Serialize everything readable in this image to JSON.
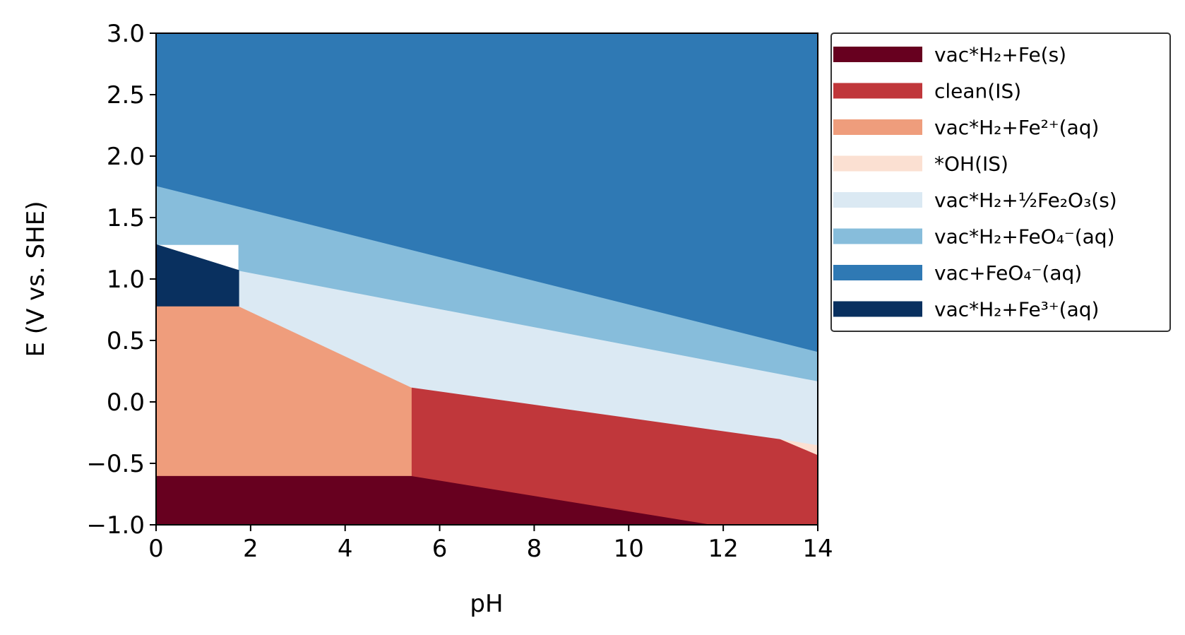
{
  "chart_data": {
    "type": "area",
    "title": "",
    "xlabel": "pH",
    "ylabel": "E (V vs. SHE)",
    "xlim": [
      0,
      14
    ],
    "ylim": [
      -1.0,
      3.0
    ],
    "xticks": [
      0,
      2,
      4,
      6,
      8,
      10,
      12,
      14
    ],
    "xtick_labels": [
      "0",
      "2",
      "4",
      "6",
      "8",
      "10",
      "12",
      "14"
    ],
    "yticks": [
      -1.0,
      -0.5,
      0.0,
      0.5,
      1.0,
      1.5,
      2.0,
      2.5,
      3.0
    ],
    "ytick_labels": [
      "−1.0",
      "−0.5",
      "0.0",
      "0.5",
      "1.0",
      "1.5",
      "2.0",
      "2.5",
      "3.0"
    ],
    "grid": false,
    "legend_position": "outside-right",
    "series": [
      {
        "name": "vac*H₂+Fe(s)",
        "color": "#67001f",
        "polygon": [
          [
            0,
            -1.0
          ],
          [
            0,
            -0.6
          ],
          [
            5.4,
            -0.6
          ],
          [
            14,
            -1.05
          ],
          [
            14,
            -1.0
          ]
        ]
      },
      {
        "name": "clean(IS)",
        "color": "#c0373b",
        "polygon": [
          [
            5.4,
            -0.6
          ],
          [
            5.4,
            0.12
          ],
          [
            13.2,
            -0.3
          ],
          [
            14,
            -0.43
          ],
          [
            14,
            -1.0
          ],
          [
            11.8,
            -1.0
          ]
        ]
      },
      {
        "name": "vac*H₂+Fe²⁺(aq)",
        "color": "#ef9d7c",
        "polygon": [
          [
            0,
            -0.6
          ],
          [
            0,
            0.78
          ],
          [
            1.75,
            0.78
          ],
          [
            5.4,
            0.12
          ],
          [
            5.4,
            -0.6
          ]
        ]
      },
      {
        "name": "*OH(IS)",
        "color": "#fbe0d2",
        "polygon": [
          [
            13.2,
            -0.3
          ],
          [
            14,
            -0.35
          ],
          [
            14,
            -0.43
          ]
        ]
      },
      {
        "name": "vac*H₂+½Fe₂O₃(s)",
        "color": "#dbe9f3",
        "polygon": [
          [
            1.75,
            0.78
          ],
          [
            1.75,
            1.07
          ],
          [
            14,
            0.17
          ],
          [
            14,
            -0.35
          ],
          [
            13.2,
            -0.3
          ],
          [
            5.4,
            0.12
          ]
        ]
      },
      {
        "name": "vac*H₂+FeO₄⁻(aq)",
        "color": "#87bddb",
        "polygon": [
          [
            0,
            1.28
          ],
          [
            0,
            1.76
          ],
          [
            14,
            0.41
          ],
          [
            14,
            0.17
          ],
          [
            1.75,
            1.07
          ],
          [
            1.75,
            1.28
          ]
        ]
      },
      {
        "name": "vac+FeO₄⁻(aq)",
        "color": "#2f79b4",
        "polygon": [
          [
            0,
            1.76
          ],
          [
            0,
            3.0
          ],
          [
            14,
            3.0
          ],
          [
            14,
            0.41
          ]
        ]
      },
      {
        "name": "vac*H₂+Fe³⁺(aq)",
        "color": "#09305f",
        "polygon": [
          [
            0,
            0.78
          ],
          [
            0,
            1.28
          ],
          [
            1.75,
            1.07
          ],
          [
            1.75,
            0.78
          ]
        ]
      }
    ]
  }
}
